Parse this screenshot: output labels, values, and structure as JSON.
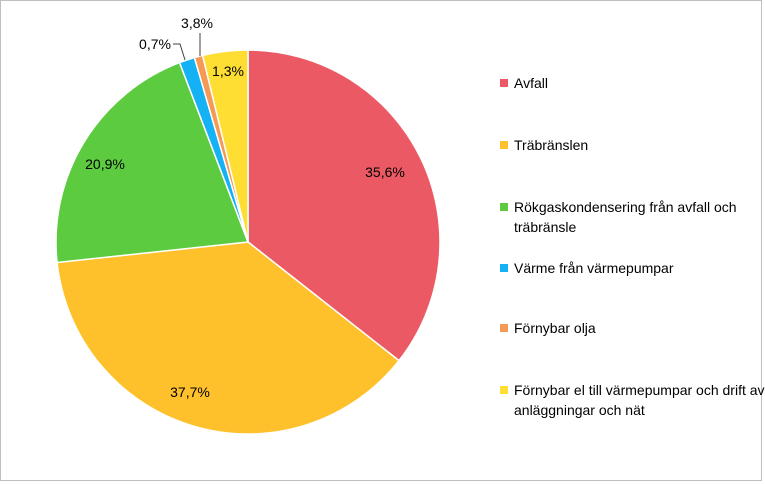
{
  "chart_data": {
    "type": "pie",
    "title": "",
    "start_angle": "12 o'clock, clockwise",
    "legend_placement": "right",
    "slices": [
      {
        "name": "Avfall",
        "value": 35.6,
        "label": "35,6%",
        "color": "#EB5A64"
      },
      {
        "name": "Träbränslen",
        "value": 37.7,
        "label": "37,7%",
        "color": "#FFC12B"
      },
      {
        "name": "Rökgaskondensering från avfall och träbränsle",
        "value": 20.9,
        "label": "20,9%",
        "color": "#5DCB3F"
      },
      {
        "name": "Värme från värmepumpar",
        "value": 1.3,
        "label": "1,3%",
        "color": "#14B2F5"
      },
      {
        "name": "Förnybar olja",
        "value": 0.7,
        "label": "0,7%",
        "color": "#F59A55"
      },
      {
        "name": "Förnybar el till värmepumpar och drift av anläggningar och nät",
        "value": 3.8,
        "label": "3,8%",
        "color": "#FFDE33"
      }
    ]
  }
}
